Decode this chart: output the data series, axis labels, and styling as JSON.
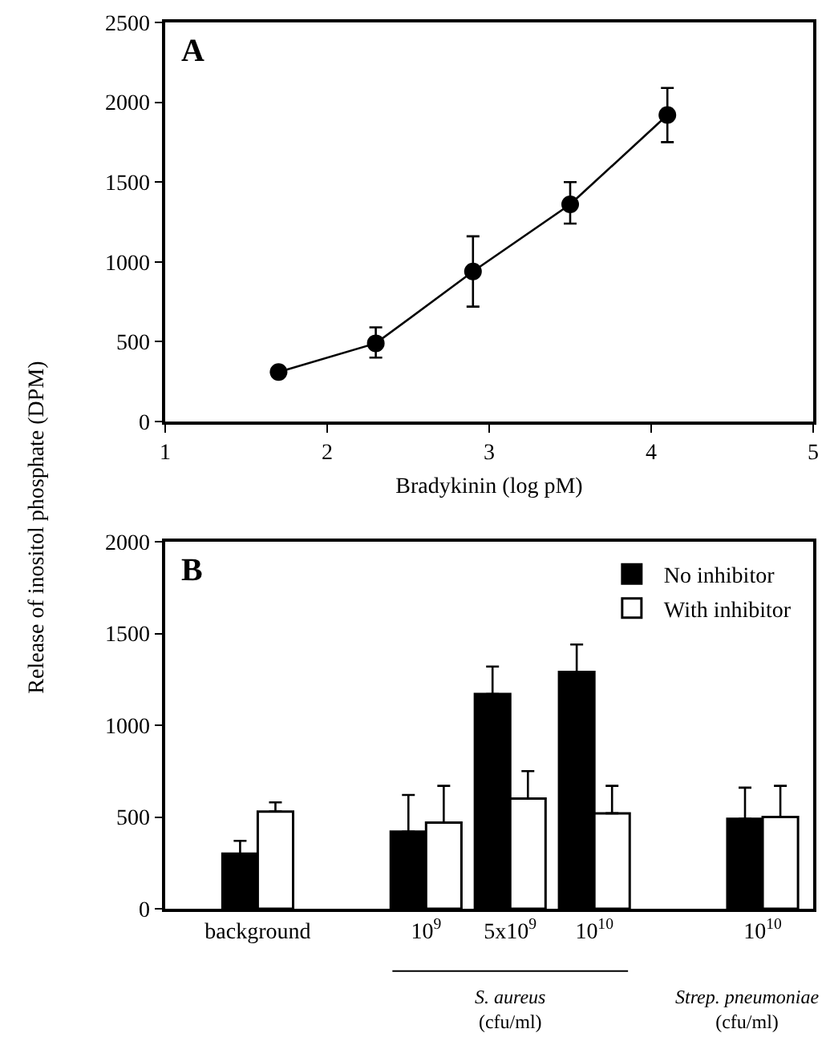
{
  "chart_data": [
    {
      "type": "line",
      "ylabel": "Release of inositol phosphate (DPM)",
      "xlabel": "Bradykinin (log pM)",
      "annotations": [
        "A"
      ],
      "x": [
        1.7,
        2.3,
        2.9,
        3.5,
        4.1
      ],
      "series": [
        {
          "color": "#000000",
          "values": [
            310,
            490,
            940,
            1360,
            1920
          ],
          "errors": [
            null,
            [
              400,
              590
            ],
            [
              720,
              1160
            ],
            [
              1240,
              1500
            ],
            [
              1750,
              2090
            ]
          ]
        }
      ],
      "xlim": [
        1,
        5
      ],
      "xticks": [
        1,
        2,
        3,
        4,
        5
      ],
      "ylim": [
        0,
        2500
      ],
      "yticks": [
        0,
        500,
        1000,
        1500,
        2000,
        2500
      ],
      "marker": "circle",
      "line_style": "solid",
      "grid": false,
      "legend": false
    },
    {
      "type": "bar",
      "annotations": [
        "B",
        "S. aureus\n(cfu/ml)",
        "Strep. pneumoniae\n(cfu/ml)"
      ],
      "categories": [
        "background",
        null,
        "10$^{9}$",
        "5x10$^{9}$",
        "10$^{10}$",
        null,
        "10$^{10}$"
      ],
      "series": [
        {
          "name": "No inhibitor",
          "color": "#000000",
          "values": [
            300,
            null,
            420,
            1170,
            1290,
            null,
            490
          ],
          "errors": [
            [
              300,
              370
            ],
            null,
            [
              420,
              620
            ],
            [
              1170,
              1320
            ],
            [
              1290,
              1440
            ],
            null,
            [
              490,
              660
            ]
          ]
        },
        {
          "name": "With inhibitor",
          "color": "#ffffff",
          "values": [
            530,
            null,
            470,
            600,
            520,
            null,
            500
          ],
          "errors": [
            [
              530,
              580
            ],
            null,
            [
              470,
              670
            ],
            [
              600,
              750
            ],
            [
              520,
              670
            ],
            null,
            [
              500,
              670
            ]
          ]
        }
      ],
      "ylim": [
        0,
        2000
      ],
      "yticks": [
        0,
        500,
        1000,
        1500,
        2000
      ],
      "grid": false,
      "legend": "top right"
    }
  ]
}
